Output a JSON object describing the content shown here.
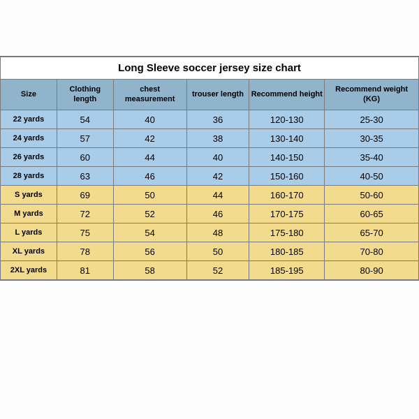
{
  "title": "Long Sleeve soccer jersey size chart",
  "columns": [
    "Size",
    "Clothing length",
    "chest measurement",
    "trouser length",
    "Recommend height",
    "Recommend weight (KG)"
  ],
  "colors": {
    "header_bg": "#8fb4cc",
    "group_a_bg": "#a9cce8",
    "group_b_bg": "#f3db8e",
    "border": "#7a7a7a",
    "text": "#000000"
  },
  "rows": [
    {
      "group": "a",
      "size": "22 yards",
      "clothing_length": "54",
      "chest": "40",
      "trouser": "36",
      "height": "120-130",
      "weight": "25-30"
    },
    {
      "group": "a",
      "size": "24 yards",
      "clothing_length": "57",
      "chest": "42",
      "trouser": "38",
      "height": "130-140",
      "weight": "30-35"
    },
    {
      "group": "a",
      "size": "26 yards",
      "clothing_length": "60",
      "chest": "44",
      "trouser": "40",
      "height": "140-150",
      "weight": "35-40"
    },
    {
      "group": "a",
      "size": "28 yards",
      "clothing_length": "63",
      "chest": "46",
      "trouser": "42",
      "height": "150-160",
      "weight": "40-50"
    },
    {
      "group": "b",
      "size": "S yards",
      "clothing_length": "69",
      "chest": "50",
      "trouser": "44",
      "height": "160-170",
      "weight": "50-60"
    },
    {
      "group": "b",
      "size": "M yards",
      "clothing_length": "72",
      "chest": "52",
      "trouser": "46",
      "height": "170-175",
      "weight": "60-65"
    },
    {
      "group": "b",
      "size": "L yards",
      "clothing_length": "75",
      "chest": "54",
      "trouser": "48",
      "height": "175-180",
      "weight": "65-70"
    },
    {
      "group": "b",
      "size": "XL yards",
      "clothing_length": "78",
      "chest": "56",
      "trouser": "50",
      "height": "180-185",
      "weight": "70-80"
    },
    {
      "group": "b",
      "size": "2XL yards",
      "clothing_length": "81",
      "chest": "58",
      "trouser": "52",
      "height": "185-195",
      "weight": "80-90"
    }
  ]
}
